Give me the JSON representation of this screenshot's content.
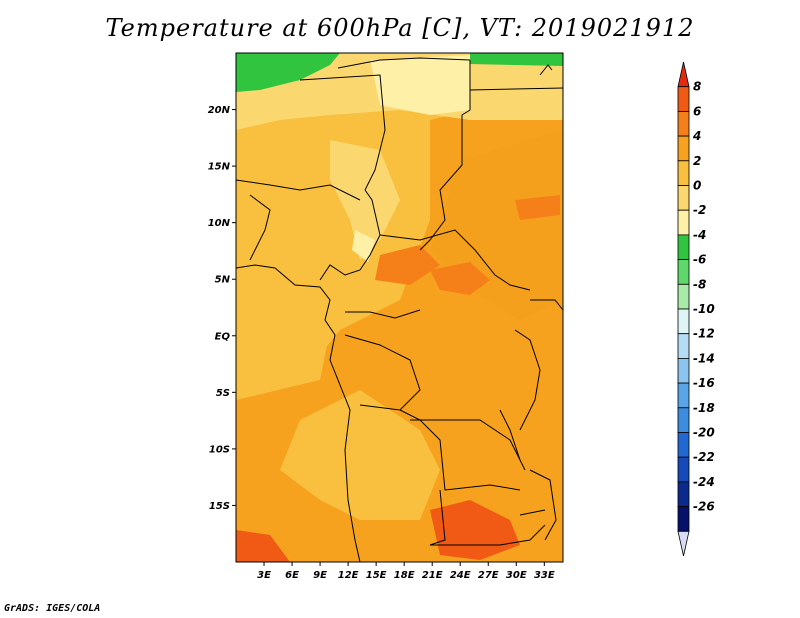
{
  "title": "Temperature at 600hPa [C], VT: 2019021912",
  "footer": "GrADS: IGES/COLA",
  "map": {
    "lon_range": [
      0,
      35
    ],
    "lat_range": [
      -20,
      25
    ],
    "lat_ticks": [
      "20N",
      "15N",
      "10N",
      "5N",
      "EQ",
      "5S",
      "10S",
      "15S"
    ],
    "lat_values": [
      20,
      15,
      10,
      5,
      0,
      -5,
      -10,
      -15
    ],
    "lon_ticks": [
      "3E",
      "6E",
      "9E",
      "12E",
      "15E",
      "18E",
      "21E",
      "24E",
      "27E",
      "30E",
      "33E"
    ],
    "lon_values": [
      3,
      6,
      9,
      12,
      15,
      18,
      21,
      24,
      27,
      30,
      33
    ]
  },
  "colorbar": {
    "labels": [
      "8",
      "6",
      "4",
      "2",
      "0",
      "-2",
      "-4",
      "-6",
      "-8",
      "-10",
      "-12",
      "-14",
      "-16",
      "-18",
      "-20",
      "-22",
      "-24",
      "-26"
    ],
    "colors": [
      "#e02b10",
      "#f05a14",
      "#f5801a",
      "#f7a21e",
      "#f9bf3e",
      "#fbd770",
      "#fff0a8",
      "#31c43f",
      "#5ed86a",
      "#a8eba8",
      "#dff5f5",
      "#b4dcf5",
      "#8cc4f0",
      "#5aa5e8",
      "#3c8ce0",
      "#2168d2",
      "#164ab8",
      "#0b2a8c",
      "#06126a",
      "#d9dcf5"
    ]
  }
}
